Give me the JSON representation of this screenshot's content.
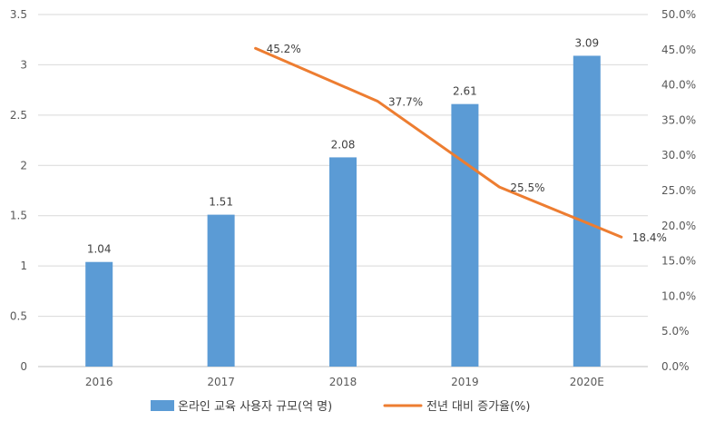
{
  "chart_data": {
    "type": "bar+line",
    "categories": [
      "2016",
      "2017",
      "2018",
      "2019",
      "2020E"
    ],
    "series": [
      {
        "name": "온라인 교육 사용자 규모(억 명)",
        "type": "bar",
        "axis": "left",
        "color": "#5B9BD5",
        "values": [
          1.04,
          1.51,
          2.08,
          2.61,
          3.09
        ],
        "labels": [
          "1.04",
          "1.51",
          "2.08",
          "2.61",
          "3.09"
        ]
      },
      {
        "name": "전년 대비 증가율(%)",
        "type": "line",
        "axis": "right",
        "color": "#ED7D31",
        "values": [
          null,
          45.2,
          37.7,
          25.5,
          18.4
        ],
        "labels": [
          "",
          "45.2%",
          "37.7%",
          "25.5%",
          "18.4%"
        ]
      }
    ],
    "y_left": {
      "range": [
        0,
        3.5
      ],
      "ticks": [
        "0",
        "0.5",
        "1",
        "1.5",
        "2",
        "2.5",
        "3",
        "3.5"
      ]
    },
    "y_right": {
      "range": [
        0,
        50
      ],
      "ticks": [
        "0.0%",
        "5.0%",
        "10.0%",
        "15.0%",
        "20.0%",
        "25.0%",
        "30.0%",
        "35.0%",
        "40.0%",
        "45.0%",
        "50.0%"
      ]
    },
    "grid": true,
    "legend_position": "bottom",
    "colors": {
      "bar": "#5B9BD5",
      "line": "#ED7D31",
      "grid": "#D9D9D9",
      "axis": "#BFBFBF",
      "tick_text": "#595959",
      "label_text": "#404040"
    }
  }
}
